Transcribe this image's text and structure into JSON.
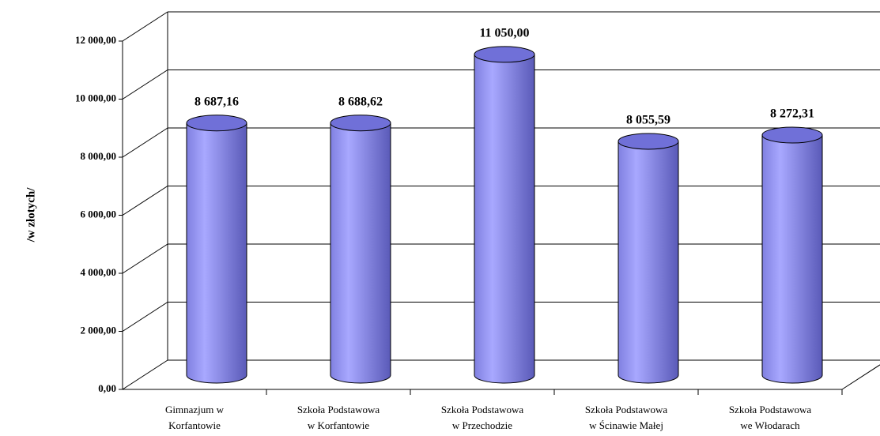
{
  "chart_data": {
    "type": "bar",
    "y_label": "/w złotych/",
    "categories": [
      [
        "Gimnazjum w",
        "Korfantowie"
      ],
      [
        "Szkoła Podstawowa",
        "w Korfantowie"
      ],
      [
        "Szkoła Podstawowa",
        "w Przechodzie"
      ],
      [
        "Szkoła Podstawowa",
        "w Ścinawie Małej"
      ],
      [
        "Szkoła Podstawowa",
        "we Włodarach"
      ]
    ],
    "values": [
      8687.16,
      8688.62,
      11050,
      8055.59,
      8272.31
    ],
    "value_labels": [
      "8 687,16",
      "8 688,62",
      "11 050,00",
      "8 055,59",
      "8 272,31"
    ],
    "color": "#9999ff",
    "ylim": [
      0,
      12000
    ],
    "yticks": [
      {
        "value": 0,
        "label": "0,00"
      },
      {
        "value": 2000,
        "label": "2 000,00"
      },
      {
        "value": 4000,
        "label": "4 000,00"
      },
      {
        "value": 6000,
        "label": "6 000,00"
      },
      {
        "value": 8000,
        "label": "8 000,00"
      },
      {
        "value": 10000,
        "label": "10 000,00"
      },
      {
        "value": 12000,
        "label": "12 000,00"
      }
    ],
    "grid": true
  }
}
